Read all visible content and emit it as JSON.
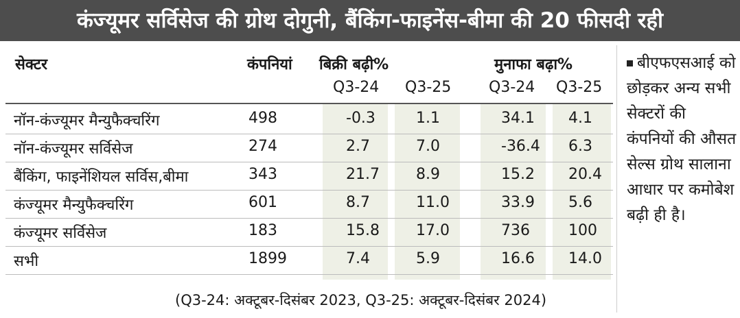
{
  "header": {
    "title": "कंज्यूमर सर्विसेज की ग्रोथ दोगुनी, बैंकिंग-फाइनेंस-बीमा की 20 फीसदी रही"
  },
  "table": {
    "columns": [
      "सेक्टर",
      "कंपनियां",
      "बिक्री बढ़ी%",
      "मुनाफा बढ़ा%"
    ],
    "subcolumns": [
      "Q3-24",
      "Q3-25",
      "Q3-24",
      "Q3-25"
    ],
    "rows": [
      [
        "नॉन-कंज्यूमर मैन्युफैक्चरिंग",
        "498",
        "-0.3",
        "1.1",
        "34.1",
        "4.1"
      ],
      [
        "नॉन-कंज्यूमर सर्विसेज",
        "274",
        "2.7",
        "7.0",
        "-36.4",
        "6.3"
      ],
      [
        "बैंकिंग, फाइनेंशियल सर्विस,बीमा",
        "343",
        "21.7",
        "8.9",
        "15.2",
        "20.4"
      ],
      [
        "कंज्यूमर मैन्युफैक्चरिंग",
        "601",
        "8.7",
        "11.0",
        "33.9",
        "5.6"
      ],
      [
        "कंज्यूमर सर्विसेज",
        "183",
        "15.8",
        "17.0",
        "736",
        "100"
      ],
      [
        "सभी",
        "1899",
        "7.4",
        "5.9",
        "16.6",
        "14.0"
      ]
    ],
    "footnote": "(Q3-24: अक्टूबर-दिसंबर 2023, Q3-25: अक्टूबर-दिसंबर 2024)"
  },
  "note": "बीएफएसआई को छोड़कर अन्य सभी सेक्टरों की कंपनियों की औसत सेल्स ग्रोथ सालाना आधार पर कमोबेश बढ़ी ही है।"
}
